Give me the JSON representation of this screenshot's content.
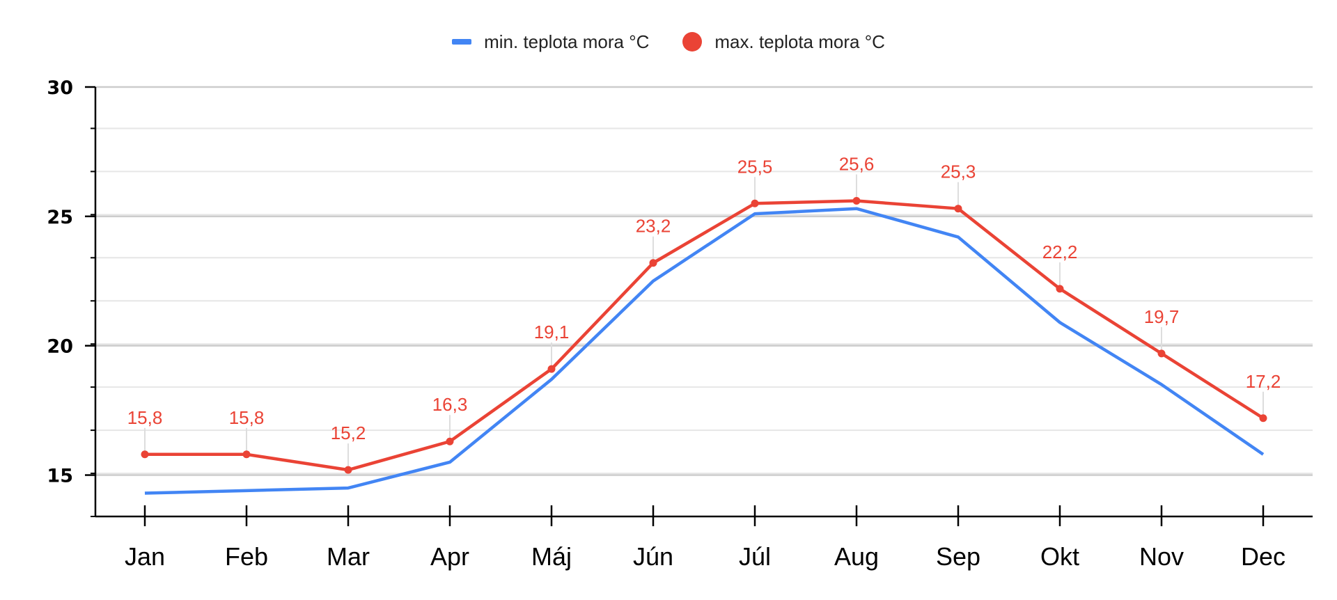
{
  "legend": {
    "min_label": "min. teplota mora °C",
    "max_label": "max. teplota mora °C"
  },
  "colors": {
    "min": "#4285f4",
    "max": "#ea4335",
    "grid": "#cccccc",
    "grid_minor": "#e6e6e6",
    "axis": "#000000"
  },
  "chart_data": {
    "type": "line",
    "categories": [
      "Jan",
      "Feb",
      "Mar",
      "Apr",
      "Máj",
      "Jún",
      "Júl",
      "Aug",
      "Sep",
      "Okt",
      "Nov",
      "Dec"
    ],
    "series": [
      {
        "name": "min. teplota mora °C",
        "values": [
          14.3,
          14.4,
          14.5,
          15.5,
          18.7,
          22.5,
          25.1,
          25.3,
          24.2,
          20.9,
          18.5,
          15.8
        ],
        "data_labels": false
      },
      {
        "name": "max. teplota mora °C",
        "values": [
          15.8,
          15.8,
          15.2,
          16.3,
          19.1,
          23.2,
          25.5,
          25.6,
          25.3,
          22.2,
          19.7,
          17.2
        ],
        "data_labels": true,
        "label_texts": [
          "15,8",
          "15,8",
          "15,2",
          "16,3",
          "19,1",
          "23,2",
          "25,5",
          "25,6",
          "25,3",
          "22,2",
          "19,7",
          "17,2"
        ]
      }
    ],
    "yticks": [
      "15",
      "20",
      "25",
      "30"
    ],
    "ytick_values": [
      15,
      20,
      25,
      30
    ],
    "ylim": [
      13.4,
      30
    ],
    "minor_step": 1.6667,
    "grid": true,
    "legend_position": "top-center",
    "title": "",
    "xlabel": "",
    "ylabel": ""
  }
}
